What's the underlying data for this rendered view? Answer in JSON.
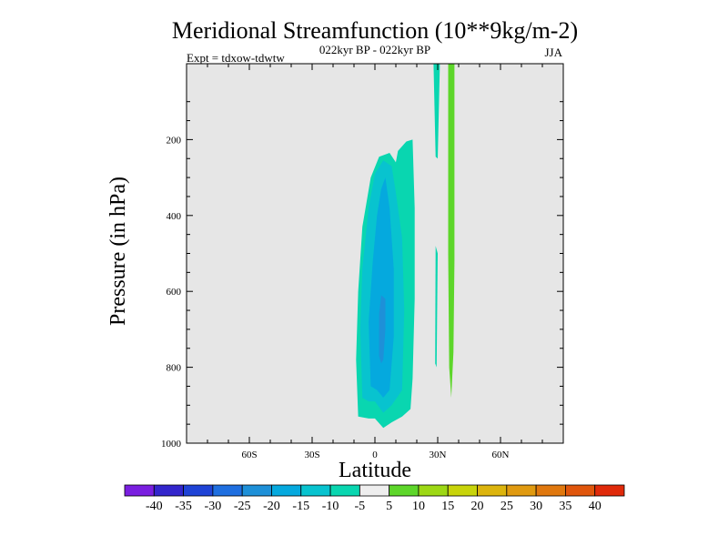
{
  "chart_data": {
    "type": "contour",
    "title": "Meridional Streamfunction (10**9kg/m-2)",
    "subtitle_center": "022kyr BP - 022kyr BP",
    "subtitle_left": "Expt = tdxow-tdwtw",
    "subtitle_right": "JJA",
    "xlabel": "Latitude",
    "ylabel": "Pressure (in hPa)",
    "xlim": [
      -90,
      90
    ],
    "ylim": [
      0,
      1000
    ],
    "y_inverted": true,
    "x_ticks": [
      {
        "value": -60,
        "label": "60S"
      },
      {
        "value": -30,
        "label": "30S"
      },
      {
        "value": 0,
        "label": "0"
      },
      {
        "value": 30,
        "label": "30N"
      },
      {
        "value": 60,
        "label": "60N"
      }
    ],
    "y_ticks": [
      {
        "value": 200,
        "label": "200"
      },
      {
        "value": 400,
        "label": "400"
      },
      {
        "value": 600,
        "label": "600"
      },
      {
        "value": 800,
        "label": "800"
      },
      {
        "value": 1000,
        "label": "1000"
      }
    ],
    "background_fill": "#e6e6e6",
    "contour_levels": [
      -40,
      -35,
      -30,
      -25,
      -20,
      -15,
      -10,
      -5,
      5,
      10,
      15,
      20,
      25,
      30,
      35,
      40
    ],
    "level_colors": [
      "#7a1fe0",
      "#3326cc",
      "#1f43d6",
      "#1f6fe0",
      "#1e90d8",
      "#05a9de",
      "#08c3cf",
      "#09d6b0",
      "#eeeeee",
      "#5dd62a",
      "#9dd814",
      "#c8d40a",
      "#dcb40d",
      "#e09a10",
      "#e0780e",
      "#e0560c",
      "#e02a0a"
    ],
    "regions": [
      {
        "level_index": 7,
        "points": [
          [
            -8,
            930
          ],
          [
            -9,
            780
          ],
          [
            -8,
            600
          ],
          [
            -6,
            430
          ],
          [
            -2,
            300
          ],
          [
            2,
            245
          ],
          [
            7,
            235
          ],
          [
            10,
            260
          ],
          [
            11,
            230
          ],
          [
            15,
            205
          ],
          [
            18,
            200
          ],
          [
            19,
            380
          ],
          [
            19,
            620
          ],
          [
            18,
            830
          ],
          [
            17,
            910
          ],
          [
            13,
            930
          ],
          [
            8,
            945
          ],
          [
            4,
            960
          ],
          [
            0,
            935
          ],
          [
            -3,
            935
          ]
        ]
      },
      {
        "level_index": 6,
        "points": [
          [
            -6,
            880
          ],
          [
            -7,
            700
          ],
          [
            -6,
            540
          ],
          [
            -3,
            380
          ],
          [
            0,
            290
          ],
          [
            4,
            255
          ],
          [
            8,
            270
          ],
          [
            10,
            340
          ],
          [
            13,
            460
          ],
          [
            14,
            650
          ],
          [
            13,
            860
          ],
          [
            8,
            900
          ],
          [
            4,
            920
          ],
          [
            0,
            890
          ],
          [
            -3,
            890
          ]
        ]
      },
      {
        "level_index": 5,
        "points": [
          [
            -2,
            850
          ],
          [
            -3,
            680
          ],
          [
            -1,
            520
          ],
          [
            1,
            400
          ],
          [
            3,
            330
          ],
          [
            5,
            300
          ],
          [
            7,
            380
          ],
          [
            9,
            540
          ],
          [
            9,
            720
          ],
          [
            7,
            860
          ],
          [
            4,
            880
          ],
          [
            1,
            860
          ]
        ]
      },
      {
        "level_index": 4,
        "points": [
          [
            2,
            770
          ],
          [
            2,
            660
          ],
          [
            3,
            610
          ],
          [
            5,
            620
          ],
          [
            5,
            700
          ],
          [
            4,
            780
          ],
          [
            3,
            790
          ]
        ]
      },
      {
        "level_index": 7,
        "points": [
          [
            28,
            0
          ],
          [
            31,
            0
          ],
          [
            31,
            10
          ],
          [
            30,
            250
          ],
          [
            29,
            245
          ]
        ]
      },
      {
        "level_index": 7,
        "points": [
          [
            29,
            480
          ],
          [
            30,
            500
          ],
          [
            29.5,
            800
          ],
          [
            28.8,
            790
          ]
        ]
      },
      {
        "level_index": 9,
        "points": [
          [
            35,
            0
          ],
          [
            38,
            0
          ],
          [
            38,
            320
          ],
          [
            38,
            520
          ],
          [
            37.5,
            760
          ],
          [
            36.5,
            880
          ],
          [
            35.5,
            800
          ],
          [
            35,
            500
          ],
          [
            35,
            250
          ]
        ]
      }
    ]
  }
}
